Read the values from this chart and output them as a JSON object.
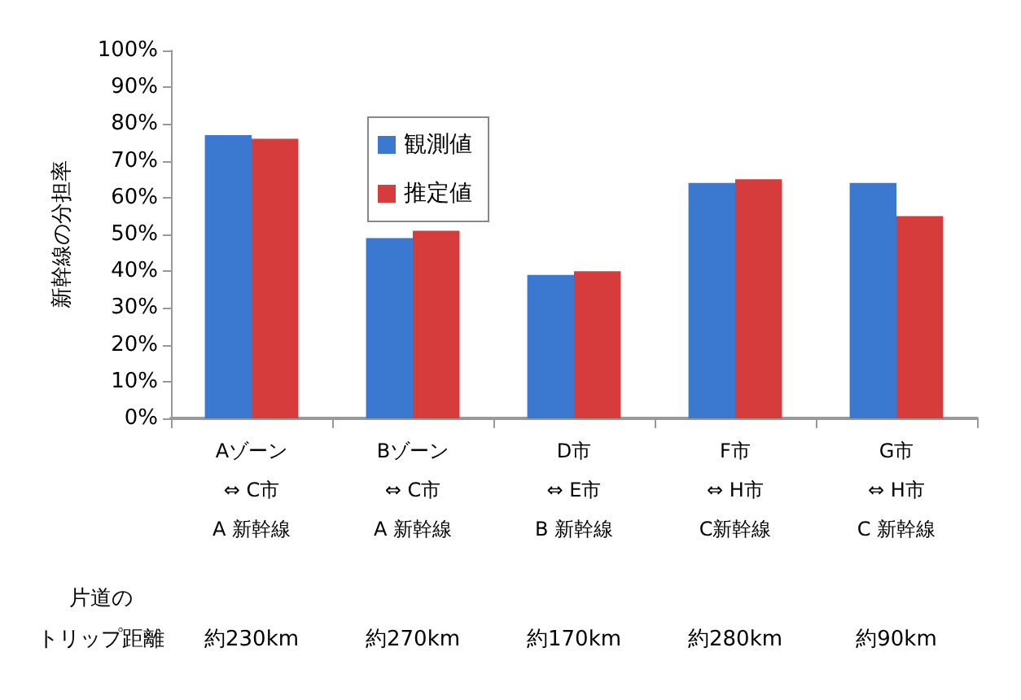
{
  "chart_data": {
    "type": "bar",
    "ylabel": "新幹線の分担率",
    "categories": [
      "Aゾーン\n⇔ C市\nA 新幹線",
      "Bゾーン\n⇔ C市\nA 新幹線",
      "D市\n⇔ E市\nB 新幹線",
      "F市\n⇔ H市\nC新幹線",
      "G市\n⇔ H市\nC 新幹線"
    ],
    "series": [
      {
        "name": "観測値",
        "color": "#3b78d0",
        "values": [
          77,
          49,
          39,
          64,
          64
        ]
      },
      {
        "name": "推定値",
        "color": "#d63c3c",
        "values": [
          76,
          51,
          40,
          65,
          55
        ]
      }
    ],
    "ylim": [
      0,
      100
    ],
    "yticks": [
      {
        "value": 0,
        "label": "0%"
      },
      {
        "value": 10,
        "label": "10%"
      },
      {
        "value": 20,
        "label": "20%"
      },
      {
        "value": 30,
        "label": "30%"
      },
      {
        "value": 40,
        "label": "40%"
      },
      {
        "value": 50,
        "label": "50%"
      },
      {
        "value": 60,
        "label": "60%"
      },
      {
        "value": 70,
        "label": "70%"
      },
      {
        "value": 80,
        "label": "80%"
      },
      {
        "value": 90,
        "label": "90%"
      },
      {
        "value": 100,
        "label": "100%"
      }
    ],
    "annotations": [
      "片道の",
      "トリップ距離",
      "約230km",
      "約270km",
      "約170km",
      "約280km",
      "約90km"
    ],
    "grid": false,
    "legend": "top left"
  }
}
